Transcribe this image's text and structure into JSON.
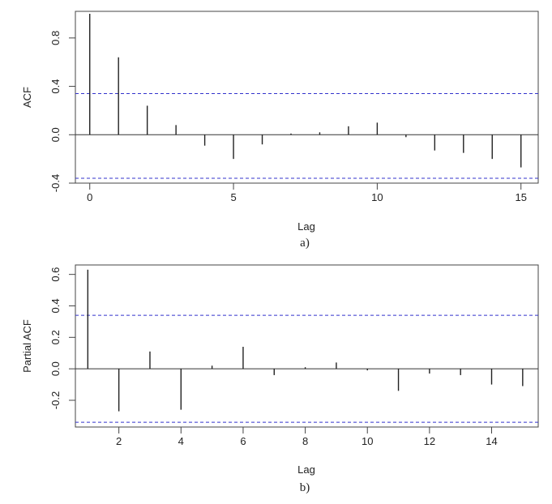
{
  "chart_data": [
    {
      "type": "bar",
      "subtype": "correlogram",
      "title": "",
      "xlabel": "Lag",
      "ylabel": "ACF",
      "caption": "a)",
      "xlim": [
        -0.5,
        15.6
      ],
      "ylim": [
        -0.4,
        1.02
      ],
      "xticks": [
        0,
        5,
        10,
        15
      ],
      "yticks": [
        -0.4,
        0.0,
        0.4,
        0.8
      ],
      "ytick_labels": [
        "-0.4",
        "0.0",
        "0.4",
        "0.8"
      ],
      "confidence_band": [
        0.34,
        -0.36
      ],
      "lags": [
        0,
        1,
        2,
        3,
        4,
        5,
        6,
        7,
        8,
        9,
        10,
        11,
        12,
        13,
        14,
        15
      ],
      "values": [
        1.0,
        0.64,
        0.24,
        0.08,
        -0.09,
        -0.2,
        -0.08,
        0.01,
        0.02,
        0.07,
        0.1,
        -0.02,
        -0.13,
        -0.15,
        -0.2,
        -0.27
      ],
      "grid": false,
      "colors": {
        "bars": "#222222",
        "band": "#3333cc"
      }
    },
    {
      "type": "bar",
      "subtype": "correlogram",
      "title": "",
      "xlabel": "Lag",
      "ylabel": "Partial ACF",
      "caption": "b)",
      "xlim": [
        0.6,
        15.5
      ],
      "ylim": [
        -0.37,
        0.66
      ],
      "xticks": [
        2,
        4,
        6,
        8,
        10,
        12,
        14
      ],
      "yticks": [
        -0.2,
        0.0,
        0.2,
        0.4,
        0.6
      ],
      "ytick_labels": [
        "-0.2",
        "0.0",
        "0.2",
        "0.4",
        "0.6"
      ],
      "confidence_band": [
        0.34,
        -0.34
      ],
      "lags": [
        1,
        2,
        3,
        4,
        5,
        6,
        7,
        8,
        9,
        10,
        11,
        12,
        13,
        14,
        15
      ],
      "values": [
        0.63,
        -0.27,
        0.11,
        -0.26,
        0.02,
        0.14,
        -0.04,
        0.01,
        0.04,
        -0.01,
        -0.14,
        -0.03,
        -0.04,
        -0.1,
        -0.11
      ],
      "grid": false,
      "colors": {
        "bars": "#222222",
        "band": "#3333cc"
      }
    }
  ]
}
